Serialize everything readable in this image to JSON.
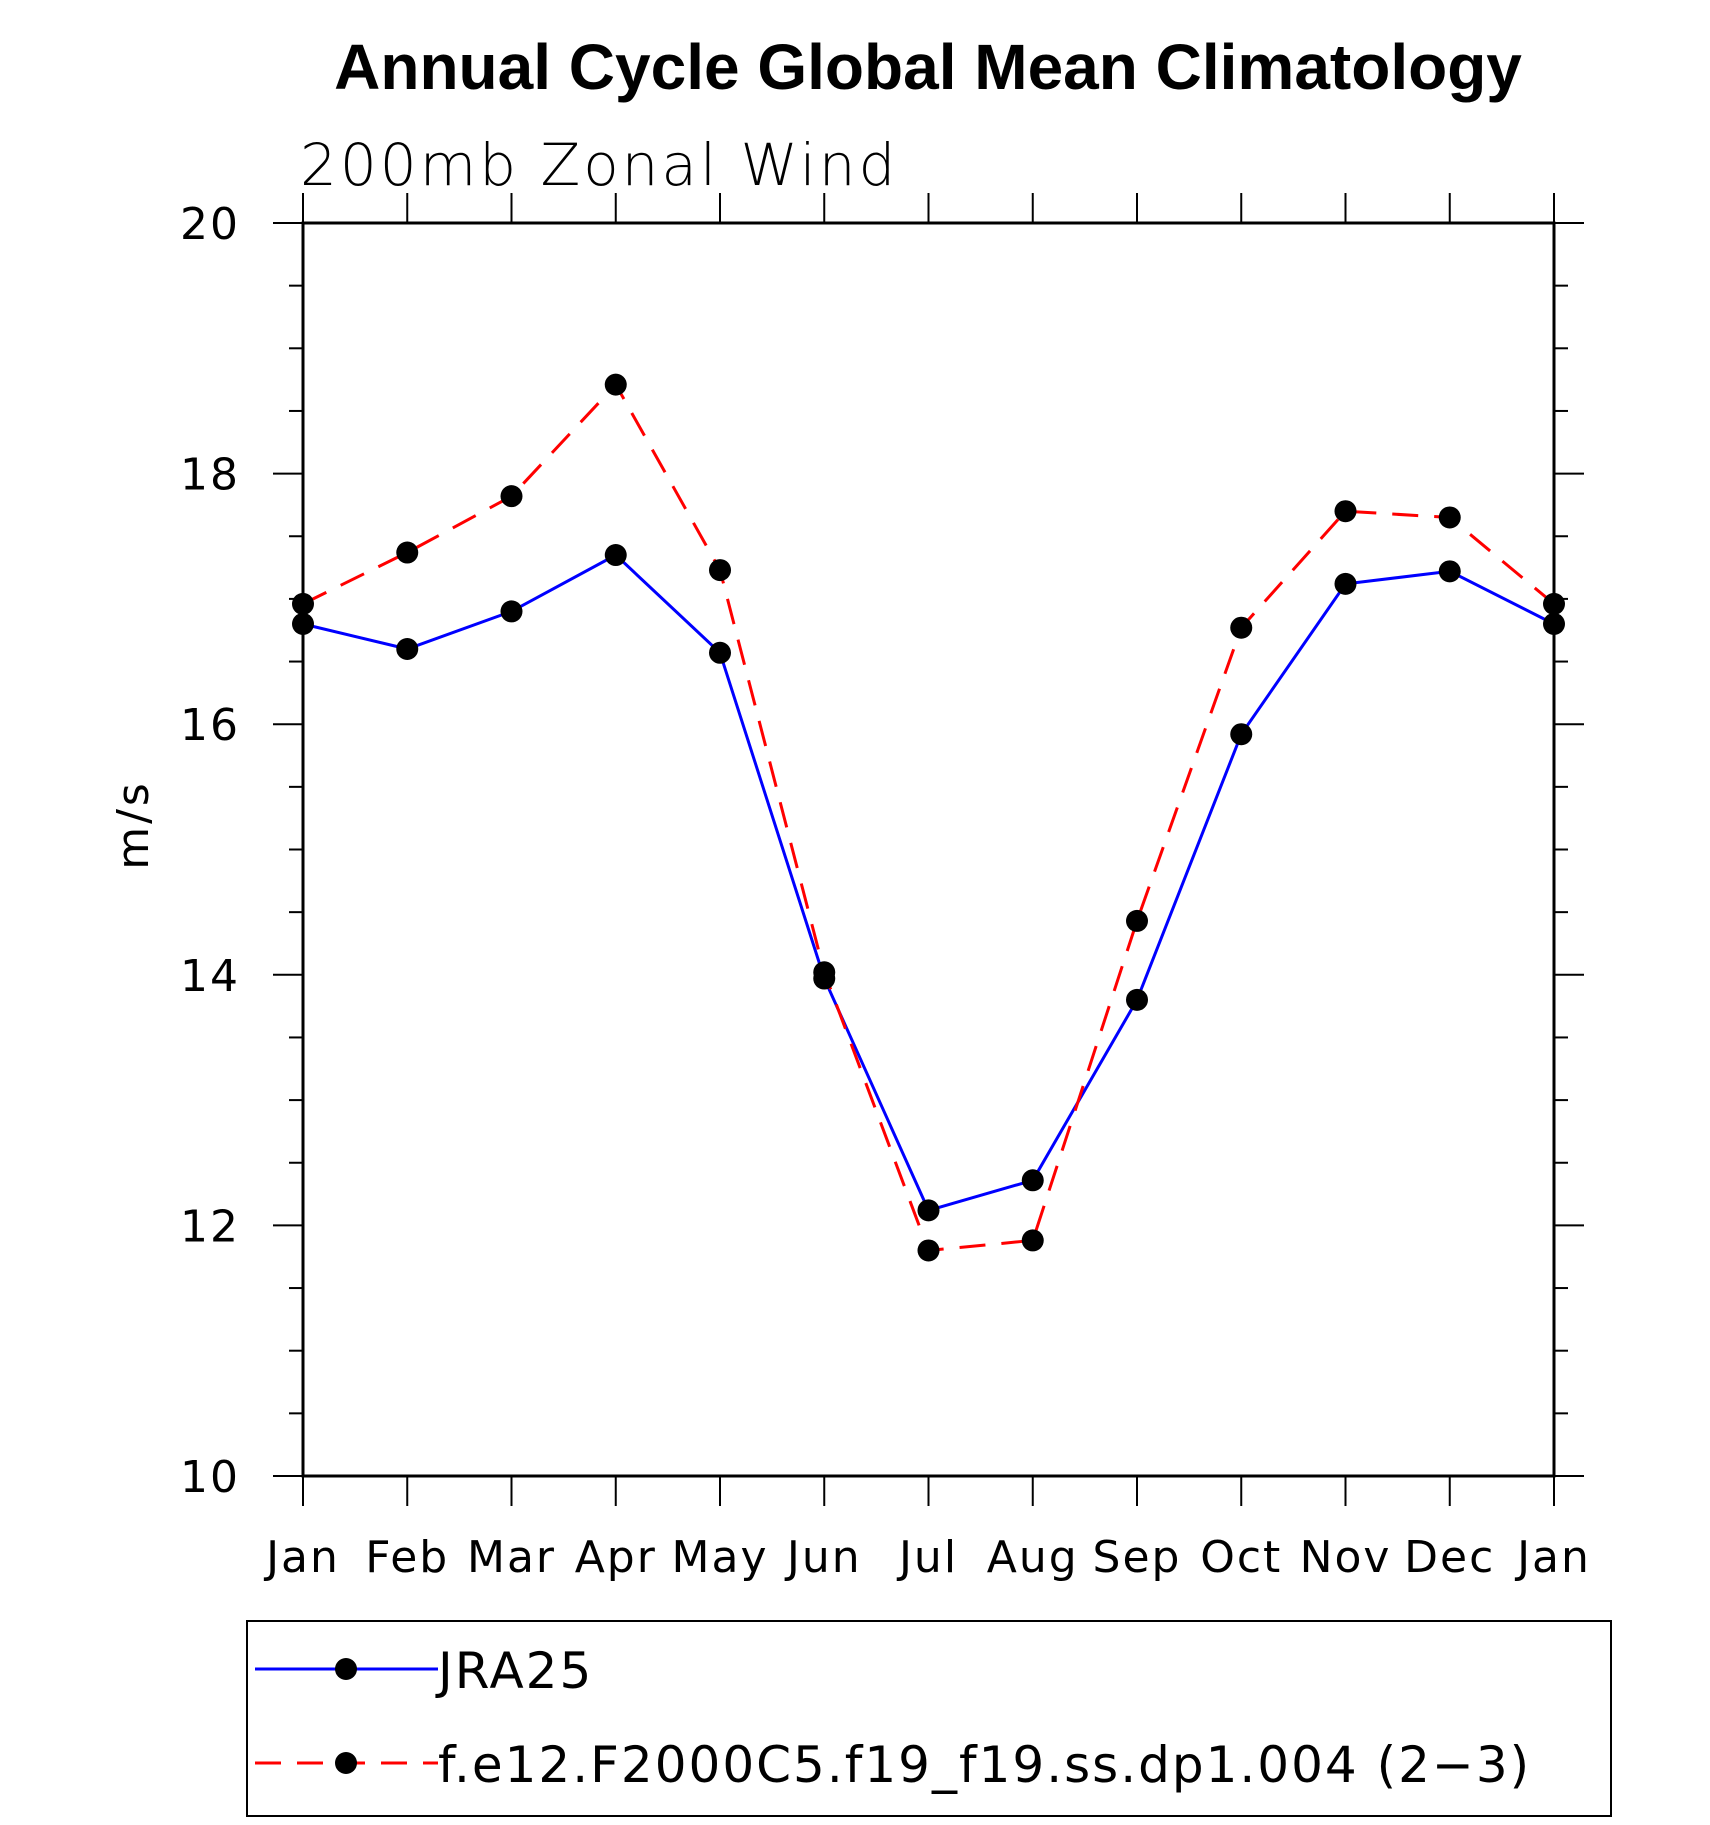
{
  "chart_data": {
    "type": "line",
    "title": "Annual Cycle Global Mean Climatology",
    "subtitle": "200mb Zonal Wind",
    "ylabel": "m/s",
    "xlabel": "",
    "ylim": [
      10,
      20
    ],
    "yticks": [
      10,
      12,
      14,
      16,
      18,
      20
    ],
    "categories": [
      "Jan",
      "Feb",
      "Mar",
      "Apr",
      "May",
      "Jun",
      "Jul",
      "Aug",
      "Sep",
      "Oct",
      "Nov",
      "Dec",
      "Jan"
    ],
    "series": [
      {
        "name": "JRA25",
        "color": "#0000ff",
        "dash": "solid",
        "values": [
          16.8,
          16.6,
          16.9,
          17.35,
          16.57,
          13.97,
          12.12,
          12.36,
          13.8,
          15.92,
          17.12,
          17.22,
          16.8
        ]
      },
      {
        "name": "f.e12.F2000C5.f19_f19.ss.dp1.004 (2−3)",
        "color": "#ff0000",
        "dash": "dashed",
        "values": [
          16.96,
          17.37,
          17.82,
          18.71,
          17.23,
          14.02,
          11.8,
          11.88,
          14.43,
          16.77,
          17.7,
          17.65,
          16.96
        ]
      }
    ],
    "legend_position": "bottom",
    "grid": false,
    "marker_color": "#000000"
  }
}
